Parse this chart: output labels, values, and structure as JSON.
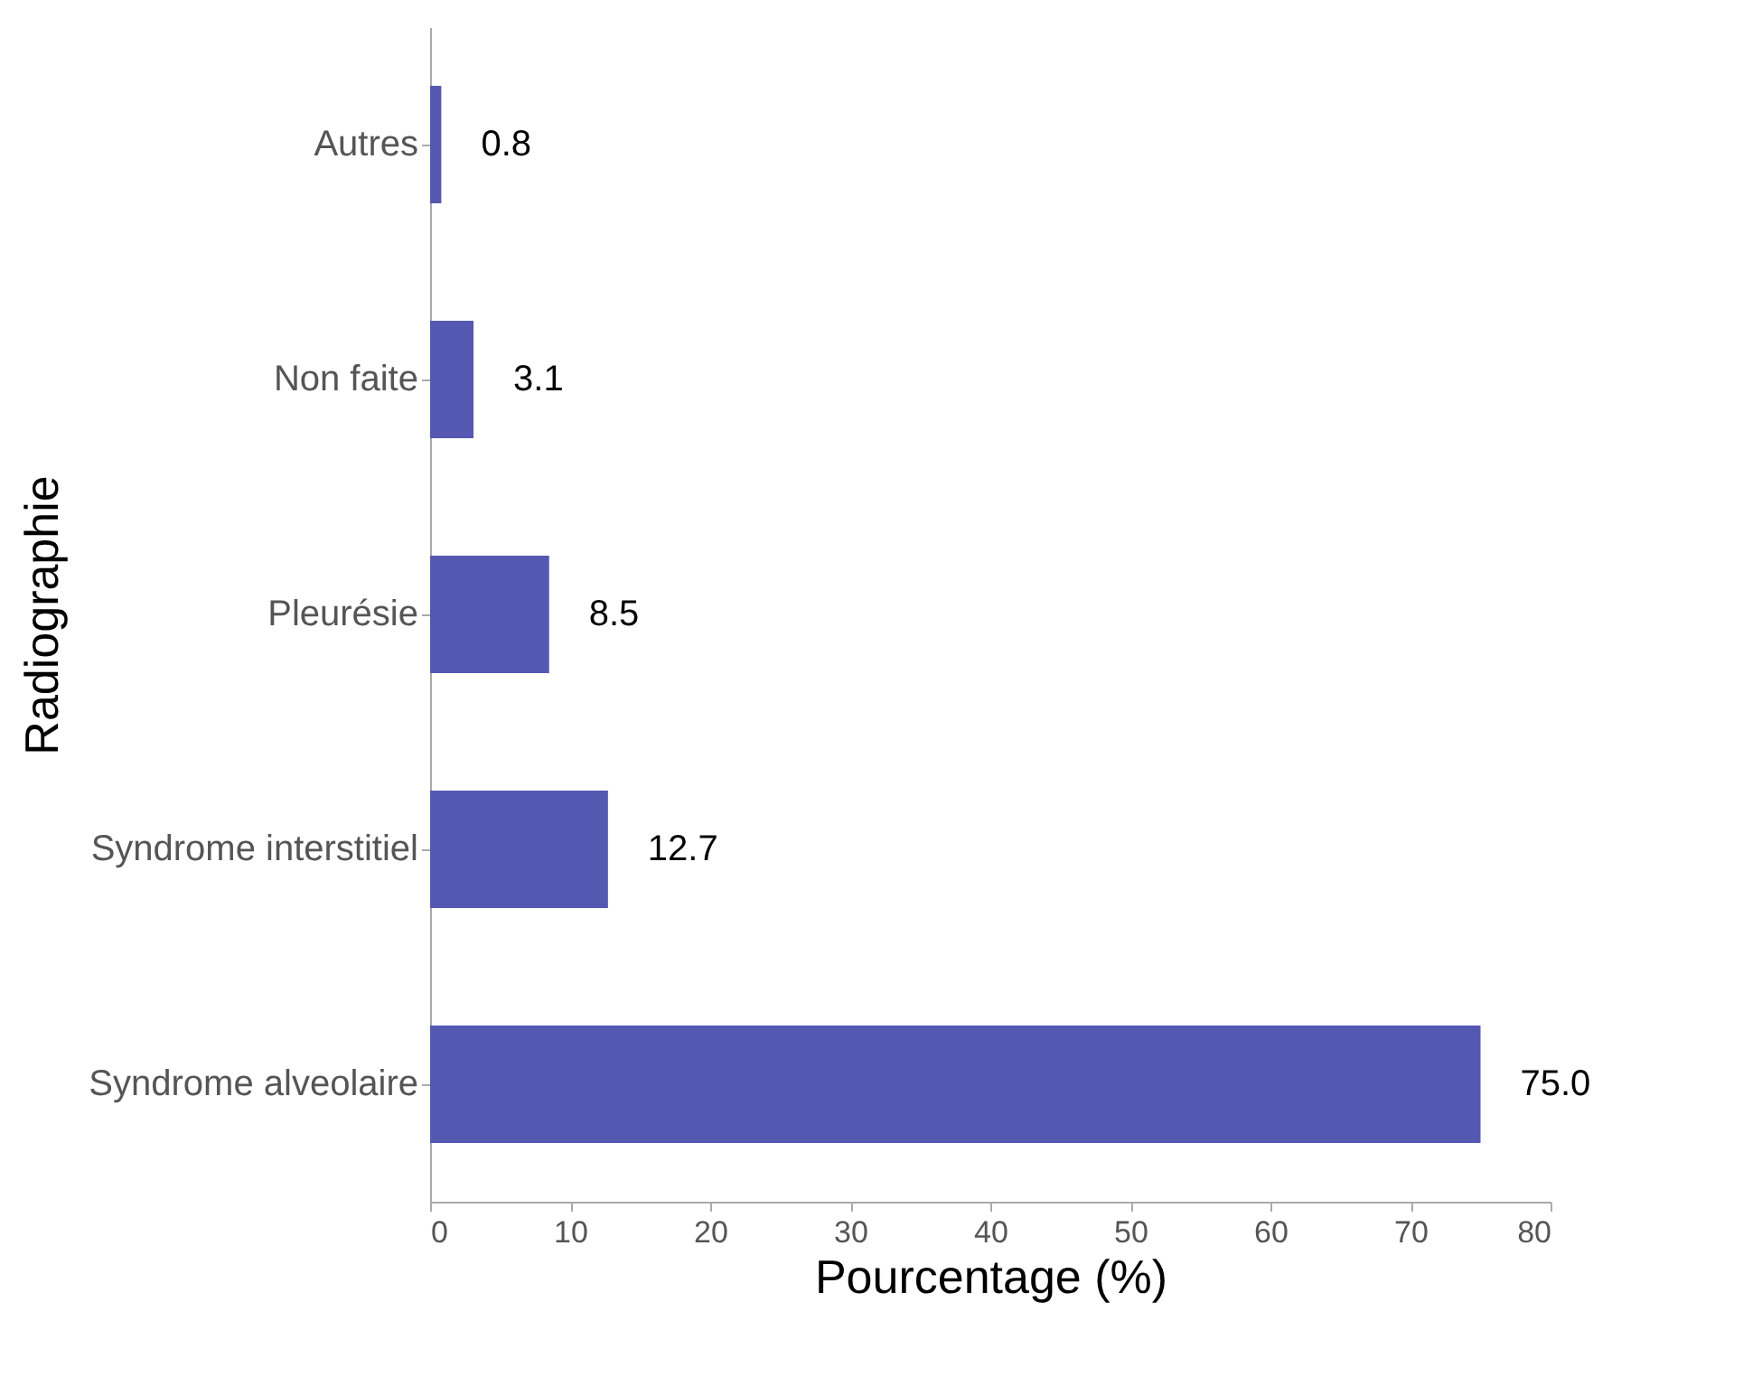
{
  "chart_data": {
    "type": "bar",
    "orientation": "horizontal",
    "xlabel": "Pourcentage (%)",
    "ylabel": "Radiographie",
    "categories": [
      "Autres",
      "Non faite",
      "Pleurésie",
      "Syndrome interstitiel",
      "Syndrome alveolaire"
    ],
    "values": [
      0.8,
      3.1,
      8.5,
      12.7,
      75.0
    ],
    "value_labels": [
      "0.8",
      "3.1",
      "8.5",
      "12.7",
      "75.0"
    ],
    "color": "#5558b0",
    "xlim": [
      0,
      80
    ],
    "xticks": [
      0,
      10,
      20,
      30,
      40,
      50,
      60,
      70,
      80
    ],
    "grid": false
  }
}
